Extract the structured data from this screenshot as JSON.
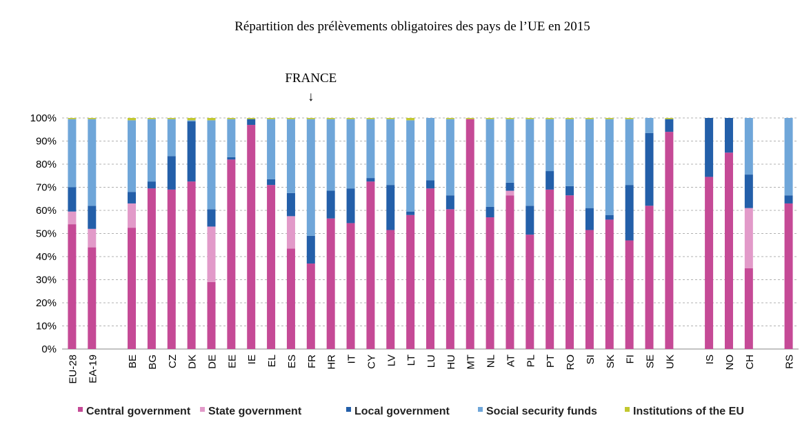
{
  "chart_data": {
    "type": "bar",
    "stacked": true,
    "title": "Répartition des prélèvements obligatoires des pays de l’UE en 2015",
    "annotation": {
      "text": "FRANCE",
      "arrow": "↓",
      "category": "FR"
    },
    "ylim": [
      0,
      100
    ],
    "yticks": [
      "0%",
      "10%",
      "20%",
      "30%",
      "40%",
      "50%",
      "60%",
      "70%",
      "80%",
      "90%",
      "100%"
    ],
    "grid": true,
    "legend_position": "bottom",
    "categories": [
      "EU-28",
      "EA-19",
      "",
      "BE",
      "BG",
      "CZ",
      "DK",
      "DE",
      "EE",
      "IE",
      "EL",
      "ES",
      "FR",
      "HR",
      "IT",
      "CY",
      "LV",
      "LT",
      "LU",
      "HU",
      "MT",
      "NL",
      "AT",
      "PL",
      "PT",
      "RO",
      "SI",
      "SK",
      "FI",
      "SE",
      "UK",
      "",
      "IS",
      "NO",
      "CH",
      "",
      "RS"
    ],
    "series": [
      {
        "name": "Central government",
        "color": "#c54a96",
        "values": [
          54,
          44,
          null,
          52.5,
          69.5,
          69,
          72.5,
          29,
          82,
          97,
          71,
          43.5,
          37,
          56.5,
          54.5,
          72.5,
          51.5,
          58,
          69.5,
          60.5,
          99.5,
          57,
          66.5,
          49.5,
          69,
          66.5,
          51.5,
          56,
          47,
          62,
          94,
          null,
          74.5,
          85,
          35,
          null,
          63
        ]
      },
      {
        "name": "State government",
        "color": "#e29ac9",
        "values": [
          5.5,
          8,
          null,
          10.5,
          0,
          0,
          0,
          24,
          0,
          0,
          0,
          14,
          0,
          0,
          0,
          0,
          0,
          0,
          0,
          0,
          0,
          0,
          2,
          0,
          0,
          0,
          0,
          0,
          0,
          0,
          0,
          null,
          0,
          0,
          26,
          null,
          0
        ]
      },
      {
        "name": "Local government",
        "color": "#235fa9",
        "values": [
          10.5,
          10,
          null,
          5,
          3,
          14.5,
          26,
          7.5,
          1,
          2.5,
          2.5,
          10,
          12,
          12,
          15,
          1.5,
          19.5,
          1.5,
          3.5,
          6,
          0,
          4.5,
          3.5,
          12.5,
          8,
          4,
          9.5,
          2,
          24,
          31.5,
          5.5,
          null,
          25.5,
          15,
          14.5,
          null,
          3.5
        ]
      },
      {
        "name": "Social security funds",
        "color": "#6fa6d9",
        "values": [
          29.5,
          37.5,
          null,
          31,
          27,
          16,
          0.5,
          38.5,
          16.5,
          0,
          26,
          32,
          50.5,
          31,
          30,
          25.5,
          28.5,
          39.5,
          27,
          33,
          0,
          38,
          27.5,
          37.5,
          22.5,
          29,
          38.5,
          41.5,
          28.5,
          6.5,
          0,
          null,
          0,
          0,
          24.5,
          null,
          33.5
        ]
      },
      {
        "name": "Institutions of the EU",
        "color": "#c2c82f",
        "values": [
          0.5,
          0.5,
          null,
          1,
          0.5,
          0.5,
          1,
          1,
          0.5,
          0.5,
          0.5,
          0.5,
          0.5,
          0.5,
          0.5,
          0.5,
          0.5,
          1,
          0,
          0.5,
          0.5,
          0.5,
          0.5,
          0.5,
          0.5,
          0.5,
          0.5,
          0.5,
          0.5,
          0,
          0.5,
          null,
          0,
          0,
          0,
          null,
          0
        ]
      }
    ]
  }
}
